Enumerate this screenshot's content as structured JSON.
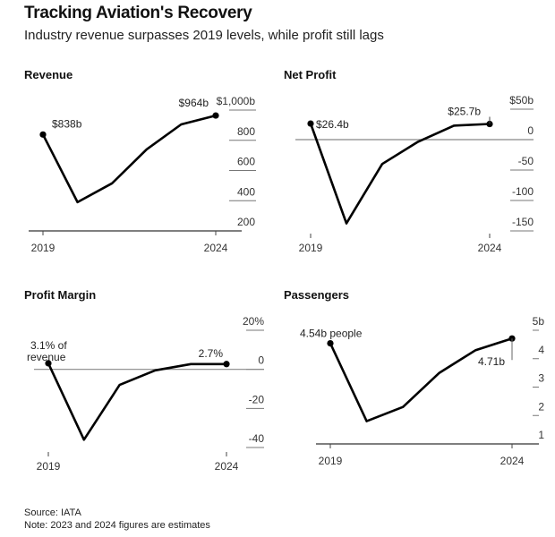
{
  "header": {
    "title": "Tracking Aviation's Recovery",
    "subtitle": "Industry revenue surpasses 2019 levels, while profit still lags"
  },
  "footer": {
    "source": "Source: IATA",
    "note": "Note: 2023 and 2024 figures are estimates"
  },
  "chart_data": [
    {
      "type": "line",
      "title": "Revenue",
      "x": [
        2019,
        2020,
        2021,
        2022,
        2023,
        2024
      ],
      "values": [
        838,
        390,
        515,
        740,
        905,
        964
      ],
      "x_tick_labels": [
        "2019",
        "2024"
      ],
      "y_ticks": [
        200,
        400,
        600,
        800,
        1000
      ],
      "y_tick_labels": [
        "200",
        "400",
        "600",
        "800",
        "$1,000b"
      ],
      "ylim": [
        200,
        1000
      ],
      "annotations": [
        {
          "x": 2019,
          "text": "$838b"
        },
        {
          "x": 2024,
          "text": "$964b"
        }
      ],
      "grid": true
    },
    {
      "type": "line",
      "title": "Net Profit",
      "x": [
        2019,
        2020,
        2021,
        2022,
        2023,
        2024
      ],
      "values": [
        26.4,
        -137.7,
        -40,
        -3.6,
        23,
        25.7
      ],
      "x_tick_labels": [
        "2019",
        "2024"
      ],
      "y_ticks": [
        -150,
        -100,
        -50,
        0,
        50
      ],
      "y_tick_labels": [
        "-150",
        "-100",
        "-50",
        "0",
        "$50b"
      ],
      "ylim": [
        -150,
        50
      ],
      "annotations": [
        {
          "x": 2019,
          "text": "$26.4b"
        },
        {
          "x": 2024,
          "text": "$25.7b"
        }
      ],
      "grid": true
    },
    {
      "type": "line",
      "title": "Profit Margin",
      "x": [
        2019,
        2020,
        2021,
        2022,
        2023,
        2024
      ],
      "values": [
        3.1,
        -36,
        -8,
        -0.5,
        2.7,
        2.7
      ],
      "x_tick_labels": [
        "2019",
        "2024"
      ],
      "y_ticks": [
        -40,
        -20,
        0,
        20
      ],
      "y_tick_labels": [
        "-40",
        "-20",
        "0",
        "20%"
      ],
      "ylim": [
        -40,
        20
      ],
      "annotations": [
        {
          "x": 2019,
          "text": "3.1% of revenue"
        },
        {
          "x": 2024,
          "text": "2.7%"
        }
      ],
      "grid": true
    },
    {
      "type": "line",
      "title": "Passengers",
      "x": [
        2019,
        2020,
        2021,
        2022,
        2023,
        2024
      ],
      "values": [
        4.54,
        1.8,
        2.3,
        3.5,
        4.3,
        4.71
      ],
      "x_tick_labels": [
        "2019",
        "2024"
      ],
      "y_ticks": [
        1,
        2,
        3,
        4,
        5
      ],
      "y_tick_labels": [
        "1",
        "2",
        "3",
        "4",
        "5b"
      ],
      "ylim": [
        1,
        5
      ],
      "annotations": [
        {
          "x": 2019,
          "text": "4.54b people"
        },
        {
          "x": 2024,
          "text": "4.71b"
        }
      ],
      "grid": true
    }
  ]
}
